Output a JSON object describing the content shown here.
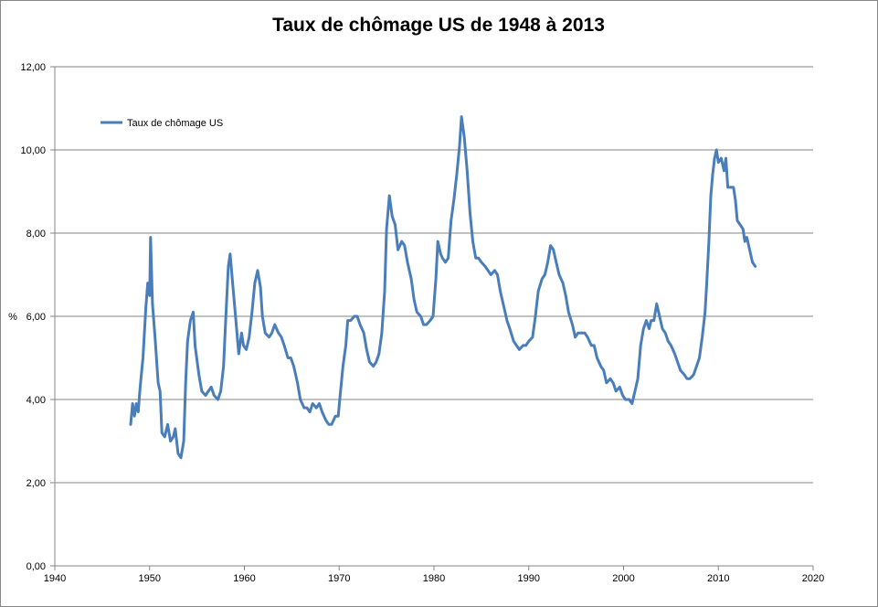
{
  "chart_data": {
    "type": "line",
    "title": "Taux de chômage US de 1948 à 2013",
    "xlabel": "",
    "ylabel": "%",
    "xlim": [
      1940,
      2020
    ],
    "ylim": [
      0,
      12
    ],
    "x_ticks": [
      "1940",
      "1950",
      "1960",
      "1970",
      "1980",
      "1990",
      "2000",
      "2010",
      "2020"
    ],
    "y_ticks": [
      "0,00",
      "2,00",
      "4,00",
      "6,00",
      "8,00",
      "10,00",
      "12,00"
    ],
    "grid": "horizontal",
    "legend_position": "top-left",
    "series": [
      {
        "name": "Taux de chômage US",
        "color": "#4a7ebb",
        "points": [
          [
            1948.0,
            3.4
          ],
          [
            1948.2,
            3.9
          ],
          [
            1948.4,
            3.6
          ],
          [
            1948.6,
            3.9
          ],
          [
            1948.8,
            3.7
          ],
          [
            1949.0,
            4.3
          ],
          [
            1949.3,
            5.0
          ],
          [
            1949.6,
            6.2
          ],
          [
            1949.8,
            6.8
          ],
          [
            1950.0,
            6.5
          ],
          [
            1950.1,
            7.9
          ],
          [
            1950.3,
            6.3
          ],
          [
            1950.6,
            5.4
          ],
          [
            1950.9,
            4.4
          ],
          [
            1951.1,
            4.2
          ],
          [
            1951.3,
            3.2
          ],
          [
            1951.6,
            3.1
          ],
          [
            1951.9,
            3.4
          ],
          [
            1952.2,
            3.0
          ],
          [
            1952.5,
            3.1
          ],
          [
            1952.7,
            3.3
          ],
          [
            1953.0,
            2.7
          ],
          [
            1953.3,
            2.6
          ],
          [
            1953.6,
            3.0
          ],
          [
            1953.8,
            4.4
          ],
          [
            1954.0,
            5.4
          ],
          [
            1954.3,
            5.9
          ],
          [
            1954.6,
            6.1
          ],
          [
            1954.8,
            5.3
          ],
          [
            1955.2,
            4.6
          ],
          [
            1955.5,
            4.2
          ],
          [
            1955.9,
            4.1
          ],
          [
            1956.2,
            4.2
          ],
          [
            1956.5,
            4.3
          ],
          [
            1956.8,
            4.1
          ],
          [
            1957.2,
            4.0
          ],
          [
            1957.5,
            4.2
          ],
          [
            1957.8,
            4.8
          ],
          [
            1958.0,
            5.8
          ],
          [
            1958.3,
            7.2
          ],
          [
            1958.5,
            7.5
          ],
          [
            1958.8,
            6.7
          ],
          [
            1959.1,
            5.9
          ],
          [
            1959.4,
            5.1
          ],
          [
            1959.7,
            5.6
          ],
          [
            1959.9,
            5.3
          ],
          [
            1960.2,
            5.2
          ],
          [
            1960.5,
            5.5
          ],
          [
            1960.8,
            6.1
          ],
          [
            1961.1,
            6.8
          ],
          [
            1961.4,
            7.1
          ],
          [
            1961.7,
            6.7
          ],
          [
            1961.9,
            6.0
          ],
          [
            1962.2,
            5.6
          ],
          [
            1962.6,
            5.5
          ],
          [
            1962.9,
            5.6
          ],
          [
            1963.2,
            5.8
          ],
          [
            1963.6,
            5.6
          ],
          [
            1963.9,
            5.5
          ],
          [
            1964.2,
            5.3
          ],
          [
            1964.6,
            5.0
          ],
          [
            1964.9,
            5.0
          ],
          [
            1965.2,
            4.8
          ],
          [
            1965.6,
            4.4
          ],
          [
            1965.9,
            4.0
          ],
          [
            1966.3,
            3.8
          ],
          [
            1966.6,
            3.8
          ],
          [
            1966.9,
            3.7
          ],
          [
            1967.2,
            3.9
          ],
          [
            1967.6,
            3.8
          ],
          [
            1967.9,
            3.9
          ],
          [
            1968.2,
            3.7
          ],
          [
            1968.6,
            3.5
          ],
          [
            1968.9,
            3.4
          ],
          [
            1969.2,
            3.4
          ],
          [
            1969.6,
            3.6
          ],
          [
            1969.9,
            3.6
          ],
          [
            1970.1,
            4.1
          ],
          [
            1970.4,
            4.8
          ],
          [
            1970.7,
            5.3
          ],
          [
            1970.9,
            5.9
          ],
          [
            1971.2,
            5.9
          ],
          [
            1971.6,
            6.0
          ],
          [
            1971.9,
            6.0
          ],
          [
            1972.2,
            5.8
          ],
          [
            1972.6,
            5.6
          ],
          [
            1972.9,
            5.2
          ],
          [
            1973.2,
            4.9
          ],
          [
            1973.6,
            4.8
          ],
          [
            1973.9,
            4.9
          ],
          [
            1974.2,
            5.1
          ],
          [
            1974.5,
            5.6
          ],
          [
            1974.8,
            6.6
          ],
          [
            1975.0,
            8.1
          ],
          [
            1975.3,
            8.9
          ],
          [
            1975.6,
            8.4
          ],
          [
            1975.9,
            8.2
          ],
          [
            1976.2,
            7.6
          ],
          [
            1976.6,
            7.8
          ],
          [
            1976.9,
            7.7
          ],
          [
            1977.2,
            7.3
          ],
          [
            1977.6,
            6.9
          ],
          [
            1977.9,
            6.4
          ],
          [
            1978.2,
            6.1
          ],
          [
            1978.6,
            6.0
          ],
          [
            1978.9,
            5.8
          ],
          [
            1979.2,
            5.8
          ],
          [
            1979.6,
            5.9
          ],
          [
            1979.9,
            6.0
          ],
          [
            1980.2,
            6.9
          ],
          [
            1980.4,
            7.8
          ],
          [
            1980.7,
            7.5
          ],
          [
            1980.9,
            7.4
          ],
          [
            1981.2,
            7.3
          ],
          [
            1981.5,
            7.4
          ],
          [
            1981.8,
            8.3
          ],
          [
            1982.1,
            8.8
          ],
          [
            1982.4,
            9.4
          ],
          [
            1982.7,
            10.1
          ],
          [
            1982.9,
            10.8
          ],
          [
            1983.2,
            10.3
          ],
          [
            1983.5,
            9.5
          ],
          [
            1983.8,
            8.5
          ],
          [
            1984.1,
            7.8
          ],
          [
            1984.4,
            7.4
          ],
          [
            1984.7,
            7.4
          ],
          [
            1985.0,
            7.3
          ],
          [
            1985.4,
            7.2
          ],
          [
            1985.7,
            7.1
          ],
          [
            1986.0,
            7.0
          ],
          [
            1986.4,
            7.1
          ],
          [
            1986.7,
            7.0
          ],
          [
            1987.0,
            6.6
          ],
          [
            1987.4,
            6.2
          ],
          [
            1987.7,
            5.9
          ],
          [
            1988.0,
            5.7
          ],
          [
            1988.4,
            5.4
          ],
          [
            1988.7,
            5.3
          ],
          [
            1989.0,
            5.2
          ],
          [
            1989.4,
            5.3
          ],
          [
            1989.7,
            5.3
          ],
          [
            1990.0,
            5.4
          ],
          [
            1990.4,
            5.5
          ],
          [
            1990.7,
            6.0
          ],
          [
            1991.0,
            6.6
          ],
          [
            1991.4,
            6.9
          ],
          [
            1991.7,
            7.0
          ],
          [
            1992.0,
            7.3
          ],
          [
            1992.3,
            7.7
          ],
          [
            1992.6,
            7.6
          ],
          [
            1992.9,
            7.3
          ],
          [
            1993.2,
            7.0
          ],
          [
            1993.6,
            6.8
          ],
          [
            1993.9,
            6.5
          ],
          [
            1994.2,
            6.1
          ],
          [
            1994.6,
            5.8
          ],
          [
            1994.9,
            5.5
          ],
          [
            1995.2,
            5.6
          ],
          [
            1995.6,
            5.6
          ],
          [
            1995.9,
            5.6
          ],
          [
            1996.2,
            5.5
          ],
          [
            1996.6,
            5.3
          ],
          [
            1996.9,
            5.3
          ],
          [
            1997.2,
            5.0
          ],
          [
            1997.6,
            4.8
          ],
          [
            1997.9,
            4.7
          ],
          [
            1998.2,
            4.4
          ],
          [
            1998.6,
            4.5
          ],
          [
            1998.9,
            4.4
          ],
          [
            1999.2,
            4.2
          ],
          [
            1999.6,
            4.3
          ],
          [
            1999.9,
            4.1
          ],
          [
            2000.2,
            4.0
          ],
          [
            2000.6,
            4.0
          ],
          [
            2000.9,
            3.9
          ],
          [
            2001.2,
            4.2
          ],
          [
            2001.5,
            4.5
          ],
          [
            2001.8,
            5.3
          ],
          [
            2002.1,
            5.7
          ],
          [
            2002.4,
            5.9
          ],
          [
            2002.7,
            5.7
          ],
          [
            2002.9,
            5.9
          ],
          [
            2003.2,
            5.9
          ],
          [
            2003.5,
            6.3
          ],
          [
            2003.8,
            6.0
          ],
          [
            2004.1,
            5.7
          ],
          [
            2004.4,
            5.6
          ],
          [
            2004.7,
            5.4
          ],
          [
            2005.0,
            5.3
          ],
          [
            2005.4,
            5.1
          ],
          [
            2005.7,
            4.9
          ],
          [
            2006.0,
            4.7
          ],
          [
            2006.4,
            4.6
          ],
          [
            2006.7,
            4.5
          ],
          [
            2007.0,
            4.5
          ],
          [
            2007.4,
            4.6
          ],
          [
            2007.7,
            4.8
          ],
          [
            2008.0,
            5.0
          ],
          [
            2008.3,
            5.5
          ],
          [
            2008.6,
            6.1
          ],
          [
            2008.8,
            6.9
          ],
          [
            2009.0,
            7.8
          ],
          [
            2009.2,
            8.9
          ],
          [
            2009.4,
            9.4
          ],
          [
            2009.6,
            9.8
          ],
          [
            2009.8,
            10.0
          ],
          [
            2010.0,
            9.7
          ],
          [
            2010.3,
            9.8
          ],
          [
            2010.6,
            9.5
          ],
          [
            2010.8,
            9.8
          ],
          [
            2011.0,
            9.1
          ],
          [
            2011.3,
            9.1
          ],
          [
            2011.6,
            9.1
          ],
          [
            2011.8,
            8.8
          ],
          [
            2012.0,
            8.3
          ],
          [
            2012.3,
            8.2
          ],
          [
            2012.6,
            8.1
          ],
          [
            2012.8,
            7.8
          ],
          [
            2013.0,
            7.9
          ],
          [
            2013.3,
            7.6
          ],
          [
            2013.6,
            7.3
          ],
          [
            2013.9,
            7.2
          ]
        ]
      }
    ]
  }
}
